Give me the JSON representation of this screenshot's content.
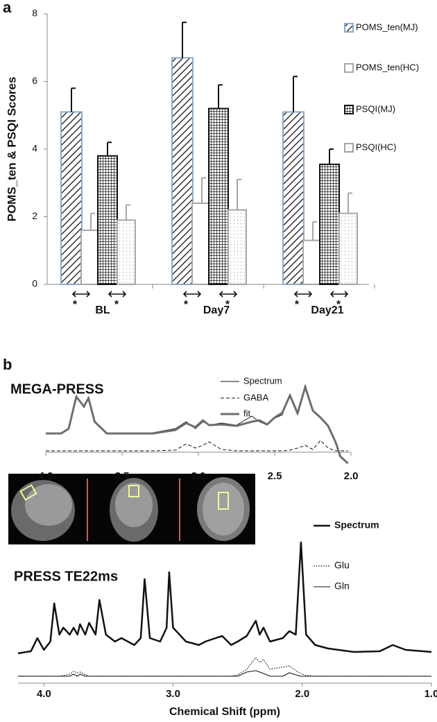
{
  "chart_data": [
    {
      "type": "bar",
      "panel_label": "a",
      "y_label": "POMS_ten & PSQI Scores",
      "categories": [
        "BL",
        "Day7",
        "Day21"
      ],
      "series": [
        {
          "name": "POMS_ten(MJ)",
          "color": "#8fa8c8",
          "pattern": "hatch",
          "values": [
            5.1,
            6.7,
            5.1
          ],
          "errors": [
            0.7,
            1.05,
            1.05
          ]
        },
        {
          "name": "POMS_ten(HC)",
          "color": "#a6a6a6",
          "pattern": "none",
          "values": [
            1.6,
            2.4,
            1.3
          ],
          "errors": [
            0.5,
            0.75,
            0.55
          ]
        },
        {
          "name": "PSQI(MJ)",
          "color": "#111111",
          "pattern": "grid",
          "values": [
            3.8,
            5.2,
            3.55
          ],
          "errors": [
            0.4,
            0.7,
            0.45
          ]
        },
        {
          "name": "PSQI(HC)",
          "color": "#a6a6a6",
          "pattern": "dots",
          "values": [
            1.9,
            2.2,
            2.1
          ],
          "errors": [
            0.45,
            0.9,
            0.6
          ]
        }
      ],
      "annotations": [
        "*",
        "*",
        "*",
        "*",
        "*",
        "*"
      ],
      "ylim": [
        0,
        8
      ],
      "yticks": [
        0,
        2,
        4,
        6,
        8
      ],
      "legend": "right"
    },
    {
      "type": "line",
      "panel_label": "b",
      "title": "MEGA-PRESS",
      "x": [
        4.0,
        3.9,
        3.85,
        3.8,
        3.75,
        3.72,
        3.68,
        3.6,
        3.5,
        3.3,
        3.15,
        3.08,
        3.02,
        2.97,
        2.93,
        2.85,
        2.75,
        2.65,
        2.6,
        2.55,
        2.5,
        2.45,
        2.4,
        2.35,
        2.3,
        2.25,
        2.2,
        2.15,
        2.1,
        2.07,
        2.02
      ],
      "series": [
        {
          "name": "Spectrum",
          "color": "#111111",
          "line_style": "solid",
          "line_width": 1,
          "values": [
            4.3,
            4.4,
            5,
            9.8,
            8,
            9.6,
            6,
            4.4,
            4.3,
            4.4,
            5,
            6,
            5,
            6,
            5.5,
            5.8,
            5.5,
            6.8,
            6,
            5.5,
            6.5,
            7,
            10,
            7,
            11.3,
            7.5,
            6.5,
            5.5,
            3,
            1,
            0
          ]
        },
        {
          "name": "GABA",
          "color": "#111111",
          "line_style": "dashed",
          "line_width": 1,
          "values": [
            1.8,
            1.8,
            1.8,
            1.8,
            1.8,
            1.8,
            1.8,
            1.8,
            1.8,
            1.8,
            1.9,
            2.8,
            2.2,
            2.6,
            3.1,
            2.0,
            1.8,
            1.8,
            1.8,
            1.8,
            1.8,
            1.8,
            1.9,
            2.2,
            2.6,
            2.0,
            3.3,
            2.2,
            1.8,
            1.8,
            1.8
          ]
        },
        {
          "name": "fit",
          "color": "#6e6e6e",
          "line_style": "solid",
          "line_width": 3,
          "values": [
            4.3,
            4.3,
            5,
            9.6,
            8.2,
            9.4,
            6,
            4.3,
            4.3,
            4.3,
            4.8,
            5.8,
            5.2,
            6.2,
            5.5,
            5.6,
            5.4,
            6,
            6.2,
            5.6,
            6.6,
            7.3,
            9.8,
            7.2,
            11,
            7.6,
            6.6,
            5.4,
            3,
            1,
            0
          ]
        }
      ],
      "xlim": [
        4.0,
        2.0
      ],
      "xticks": [
        {
          "value": 4.0,
          "label": "4.0"
        },
        3.5,
        {
          "value": 3.0,
          "label": "3.0"
        },
        2.5,
        {
          "value": 2.0,
          "label": "2.0"
        }
      ],
      "ylim": [
        0,
        12
      ],
      "legend": "top-right"
    },
    {
      "type": "line",
      "title": "PRESS TE22ms",
      "x_label": "Chemical Shift (ppm)",
      "x": [
        4.2,
        4.1,
        4.05,
        4.0,
        3.95,
        3.92,
        3.88,
        3.85,
        3.8,
        3.77,
        3.74,
        3.72,
        3.68,
        3.65,
        3.6,
        3.57,
        3.52,
        3.45,
        3.4,
        3.3,
        3.25,
        3.22,
        3.18,
        3.1,
        3.05,
        3.03,
        3.0,
        2.9,
        2.8,
        2.75,
        2.67,
        2.62,
        2.55,
        2.5,
        2.43,
        2.36,
        2.33,
        2.3,
        2.25,
        2.15,
        2.1,
        2.05,
        2.01,
        1.97,
        1.9,
        1.8,
        1.6,
        1.4,
        1.3,
        1.2,
        1.0
      ],
      "series": [
        {
          "name": "Spectrum",
          "color": "#111111",
          "line_style": "solid",
          "line_width": 2.5,
          "values": [
            4.3,
            4.6,
            6.5,
            4.8,
            6,
            11.5,
            7,
            8,
            7,
            8,
            7,
            8.5,
            7,
            8.7,
            7,
            12,
            7,
            6,
            6.5,
            5.5,
            6.5,
            15,
            6.5,
            6,
            8,
            16,
            8,
            6,
            5.5,
            6,
            6.5,
            6.8,
            5.5,
            6,
            6.8,
            9,
            7,
            8,
            6,
            6.5,
            7.5,
            7,
            20.3,
            7,
            5.5,
            5,
            4.5,
            4.6,
            5.5,
            4.8,
            4.5
          ]
        },
        {
          "name": "Glu",
          "color": "#111111",
          "line_style": "dotted",
          "line_width": 1.2,
          "values": [
            1,
            1,
            1,
            1,
            1,
            1,
            1,
            1.1,
            1.3,
            1.7,
            1.5,
            1.6,
            1.2,
            1,
            1,
            1,
            1,
            1,
            1,
            1,
            1,
            1,
            1,
            1,
            1,
            1,
            1,
            1,
            1,
            1,
            1,
            1,
            1,
            1.2,
            2,
            3.7,
            3,
            3.4,
            2,
            2.3,
            2.5,
            1.8,
            1.4,
            1.1,
            1,
            1,
            1,
            1,
            1,
            1,
            1
          ]
        },
        {
          "name": "Gln",
          "color": "#111111",
          "line_style": "solid",
          "line_width": 1,
          "values": [
            1,
            1,
            1,
            1,
            1,
            1,
            1,
            1,
            1,
            1.3,
            1,
            1.3,
            1,
            1,
            1,
            1,
            1,
            1,
            1,
            1,
            1,
            1,
            1,
            1,
            1,
            1,
            1,
            1,
            1,
            1,
            1,
            1,
            1,
            1,
            1.6,
            1.8,
            1.6,
            1.4,
            1,
            1,
            1.5,
            1.2,
            1,
            1,
            1,
            1,
            1,
            1,
            1,
            1,
            1
          ]
        }
      ],
      "xlim": [
        4.2,
        1.0
      ],
      "xticks": [
        {
          "value": 4.0,
          "label": "4.0"
        },
        {
          "value": 3.0,
          "label": "3.0"
        },
        {
          "value": 2.0,
          "label": "2.0"
        },
        {
          "value": 1.0,
          "label": "1.0"
        }
      ],
      "ylim": [
        0,
        21
      ],
      "legend": "top-right"
    }
  ]
}
